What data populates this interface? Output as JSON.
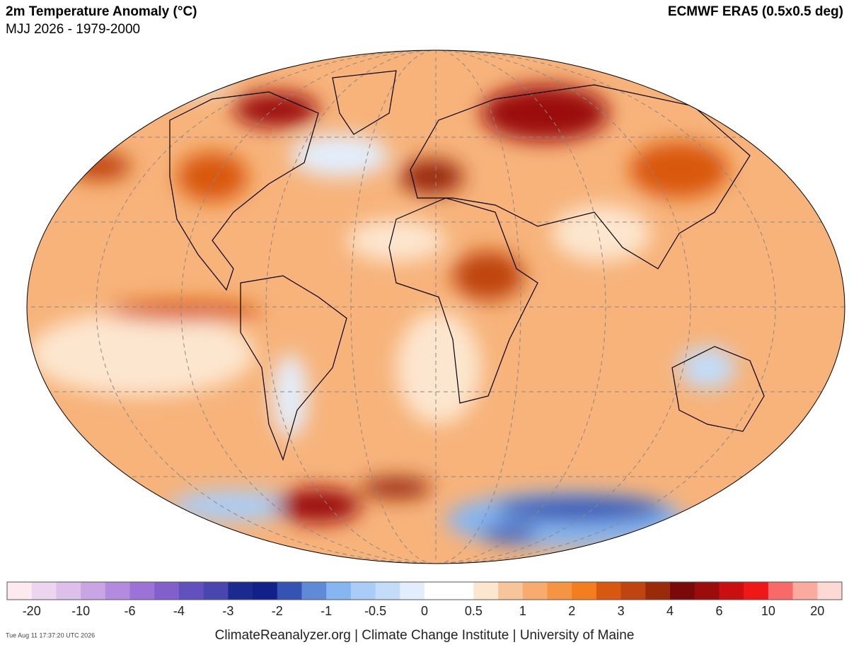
{
  "header": {
    "title": "2m Temperature Anomaly (°C)",
    "subtitle": "MJJ 2026 - 1979-2000",
    "source": "ECMWF ERA5 (0.5x0.5 deg)"
  },
  "colorbar": {
    "ticks": [
      -20,
      -10,
      -6,
      -4,
      -3,
      -2,
      -1,
      -0.5,
      0,
      0.5,
      1,
      2,
      3,
      4,
      6,
      10,
      20
    ],
    "colors": [
      "#fde9f0",
      "#ecd6ef",
      "#dcc0ea",
      "#c9a6e3",
      "#b48ade",
      "#9d72d6",
      "#8160cb",
      "#6250bd",
      "#4a46b0",
      "#1a2a8f",
      "#12208a",
      "#3553b3",
      "#5f8ad6",
      "#86b6f0",
      "#a9cdf6",
      "#c3dcf8",
      "#e3eefc",
      "#ffffff",
      "#ffffff",
      "#fde6cf",
      "#f8c59a",
      "#f7ab6c",
      "#f59541",
      "#f47d1d",
      "#d9580f",
      "#bf4410",
      "#9a2a0a",
      "#7a0a0a",
      "#9b0d0d",
      "#c90f0f",
      "#f01717",
      "#f86a6a",
      "#fbaaa0",
      "#fcd9d2"
    ]
  },
  "footer": {
    "timestamp": "Tue Aug 11 17:37:20 UTC 2026",
    "credits": "ClimateReanalyzer.org | Climate Change Institute | University of Maine"
  }
}
